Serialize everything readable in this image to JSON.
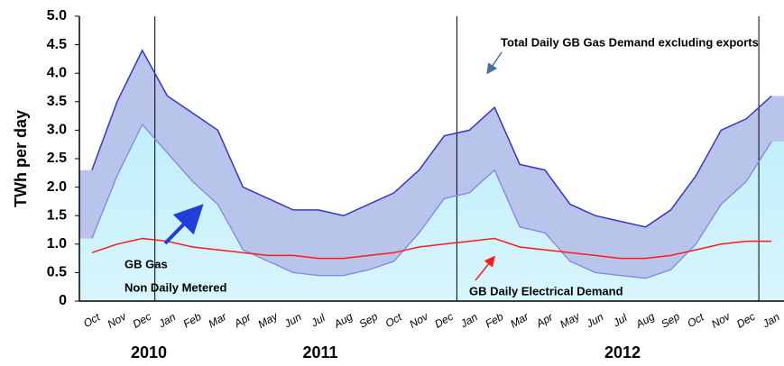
{
  "chart_data": {
    "type": "area",
    "y_label": "TWh per day",
    "categories": [
      "Oct",
      "Nov",
      "Dec",
      "Jan",
      "Feb",
      "Mar",
      "Apr",
      "May",
      "Jun",
      "Jul",
      "Aug",
      "Sep",
      "Oct",
      "Nov",
      "Dec",
      "Jan",
      "Feb",
      "Mar",
      "Apr",
      "May",
      "Jun",
      "Jul",
      "Aug",
      "Sep",
      "Oct",
      "Nov",
      "Dec",
      "Jan"
    ],
    "years": [
      "2010",
      "2011",
      "2012"
    ],
    "series": [
      {
        "color": "#3535d0",
        "values": [
          2.3,
          3.5,
          4.4,
          3.6,
          3.3,
          3.0,
          2.0,
          1.8,
          1.6,
          1.6,
          1.5,
          1.7,
          1.9,
          2.3,
          2.9,
          3.0,
          3.4,
          2.4,
          2.3,
          1.7,
          1.5,
          1.4,
          1.3,
          1.6,
          2.2,
          3.0,
          3.2,
          3.6
        ]
      },
      {
        "color": "#8484e4",
        "values": [
          1.1,
          2.2,
          3.1,
          2.6,
          2.1,
          1.7,
          0.9,
          0.7,
          0.5,
          0.45,
          0.45,
          0.55,
          0.7,
          1.2,
          1.8,
          1.9,
          2.3,
          1.3,
          1.2,
          0.7,
          0.5,
          0.45,
          0.4,
          0.55,
          1.0,
          1.7,
          2.1,
          2.8
        ]
      },
      {
        "color": "#ff1a1a",
        "values": [
          0.85,
          1.0,
          1.1,
          1.05,
          0.95,
          0.9,
          0.85,
          0.8,
          0.8,
          0.75,
          0.75,
          0.8,
          0.85,
          0.95,
          1.0,
          1.05,
          1.1,
          0.95,
          0.9,
          0.85,
          0.8,
          0.75,
          0.75,
          0.8,
          0.9,
          1.0,
          1.05,
          1.05
        ]
      }
    ],
    "ylim": [
      0,
      5
    ],
    "yticks": [
      0,
      0.5,
      {
        "value": 1,
        "label": "1.0"
      },
      1.5,
      {
        "value": 2,
        "label": "2.0"
      },
      2.5,
      {
        "value": 3,
        "label": "3.0"
      },
      3.5,
      {
        "value": 4,
        "label": "4.0"
      },
      4.5,
      {
        "value": 5,
        "label": "5.0"
      }
    ],
    "annotations": [
      "Total Daily GB Gas Demand excluding exports",
      "GB Gas",
      "Non Daily Metered",
      "GB Daily Electrical Demand"
    ]
  }
}
